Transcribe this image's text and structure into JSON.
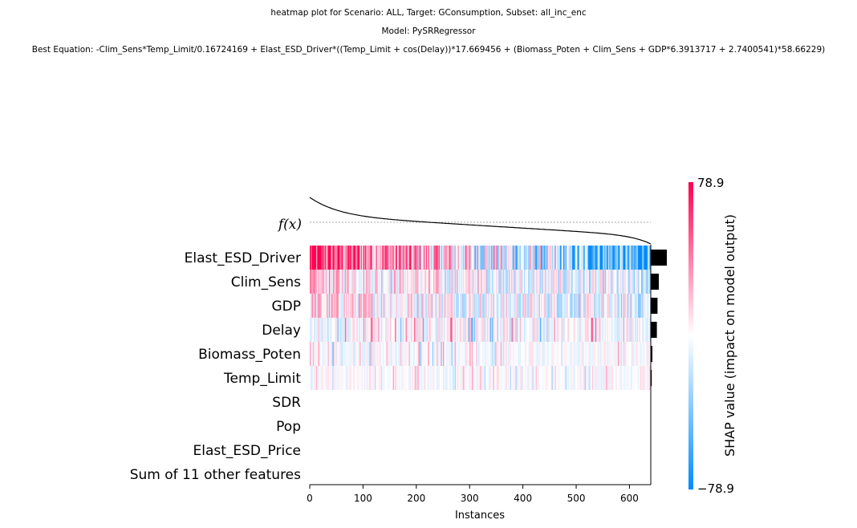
{
  "titles": {
    "line1": "heatmap plot for Scenario: ALL, Target: GConsumption, Subset: all_inc_enc",
    "line2": "Model: PySRRegressor",
    "line3": "Best Equation: -Clim_Sens*Temp_Limit/0.16724169 + Elast_ESD_Driver*((Temp_Limit + cos(Delay))*17.669456 + (Biomass_Poten + Clim_Sens + GDP*6.3913717 + 2.7400541)*58.66229)"
  },
  "chart_data": {
    "type": "heatmap",
    "xlabel": "Instances",
    "x_ticks": [
      0,
      100,
      200,
      300,
      400,
      500,
      600
    ],
    "n_instances": 640,
    "fx_label": "f(x)",
    "features": [
      {
        "name": "Elast_ESD_Driver",
        "mean_abs_shap": 1.0,
        "intensity": 1.0,
        "trend": 1.0
      },
      {
        "name": "Clim_Sens",
        "mean_abs_shap": 0.5,
        "intensity": 0.55,
        "trend": 0.25
      },
      {
        "name": "GDP",
        "mean_abs_shap": 0.42,
        "intensity": 0.55,
        "trend": 0.2
      },
      {
        "name": "Delay",
        "mean_abs_shap": 0.38,
        "intensity": 0.35,
        "trend": 0.0
      },
      {
        "name": "Biomass_Poten",
        "mean_abs_shap": 0.1,
        "intensity": 0.2,
        "trend": 0.0
      },
      {
        "name": "Temp_Limit",
        "mean_abs_shap": 0.06,
        "intensity": 0.18,
        "trend": 0.0
      },
      {
        "name": "SDR",
        "mean_abs_shap": 0,
        "intensity": 0,
        "trend": 0
      },
      {
        "name": "Pop",
        "mean_abs_shap": 0,
        "intensity": 0,
        "trend": 0
      },
      {
        "name": "Elast_ESD_Price",
        "mean_abs_shap": 0,
        "intensity": 0,
        "trend": 0
      },
      {
        "name": "Sum of 11 other features",
        "mean_abs_shap": 0,
        "intensity": 0,
        "trend": 0
      }
    ],
    "colorbar": {
      "label": "SHAP value (impact on model output)",
      "max_label": "78.9",
      "min_label": "−78.9",
      "high_color": "#ff0051",
      "low_color": "#008bfb"
    }
  }
}
